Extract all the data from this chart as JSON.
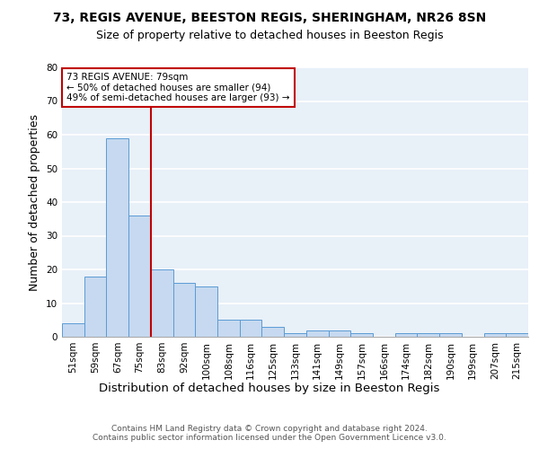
{
  "title1": "73, REGIS AVENUE, BEESTON REGIS, SHERINGHAM, NR26 8SN",
  "title2": "Size of property relative to detached houses in Beeston Regis",
  "xlabel": "Distribution of detached houses by size in Beeston Regis",
  "ylabel": "Number of detached properties",
  "categories": [
    "51sqm",
    "59sqm",
    "67sqm",
    "75sqm",
    "83sqm",
    "92sqm",
    "100sqm",
    "108sqm",
    "116sqm",
    "125sqm",
    "133sqm",
    "141sqm",
    "149sqm",
    "157sqm",
    "166sqm",
    "174sqm",
    "182sqm",
    "190sqm",
    "199sqm",
    "207sqm",
    "215sqm"
  ],
  "values": [
    4,
    18,
    59,
    36,
    20,
    16,
    15,
    5,
    5,
    3,
    1,
    2,
    2,
    1,
    0,
    1,
    1,
    1,
    0,
    1,
    1
  ],
  "bar_color": "#c6d9f0",
  "bar_edge_color": "#5b9bd5",
  "vline_color": "#c00000",
  "annotation_line1": "73 REGIS AVENUE: 79sqm",
  "annotation_line2": "← 50% of detached houses are smaller (94)",
  "annotation_line3": "49% of semi-detached houses are larger (93) →",
  "annotation_box_color": "#c00000",
  "ylim": [
    0,
    80
  ],
  "yticks": [
    0,
    10,
    20,
    30,
    40,
    50,
    60,
    70,
    80
  ],
  "footer": "Contains HM Land Registry data © Crown copyright and database right 2024.\nContains public sector information licensed under the Open Government Licence v3.0.",
  "bg_color": "#e8f0f8",
  "grid_color": "#ffffff",
  "title_fontsize": 10,
  "subtitle_fontsize": 9,
  "axis_label_fontsize": 9,
  "tick_fontsize": 7.5,
  "footer_fontsize": 6.5
}
